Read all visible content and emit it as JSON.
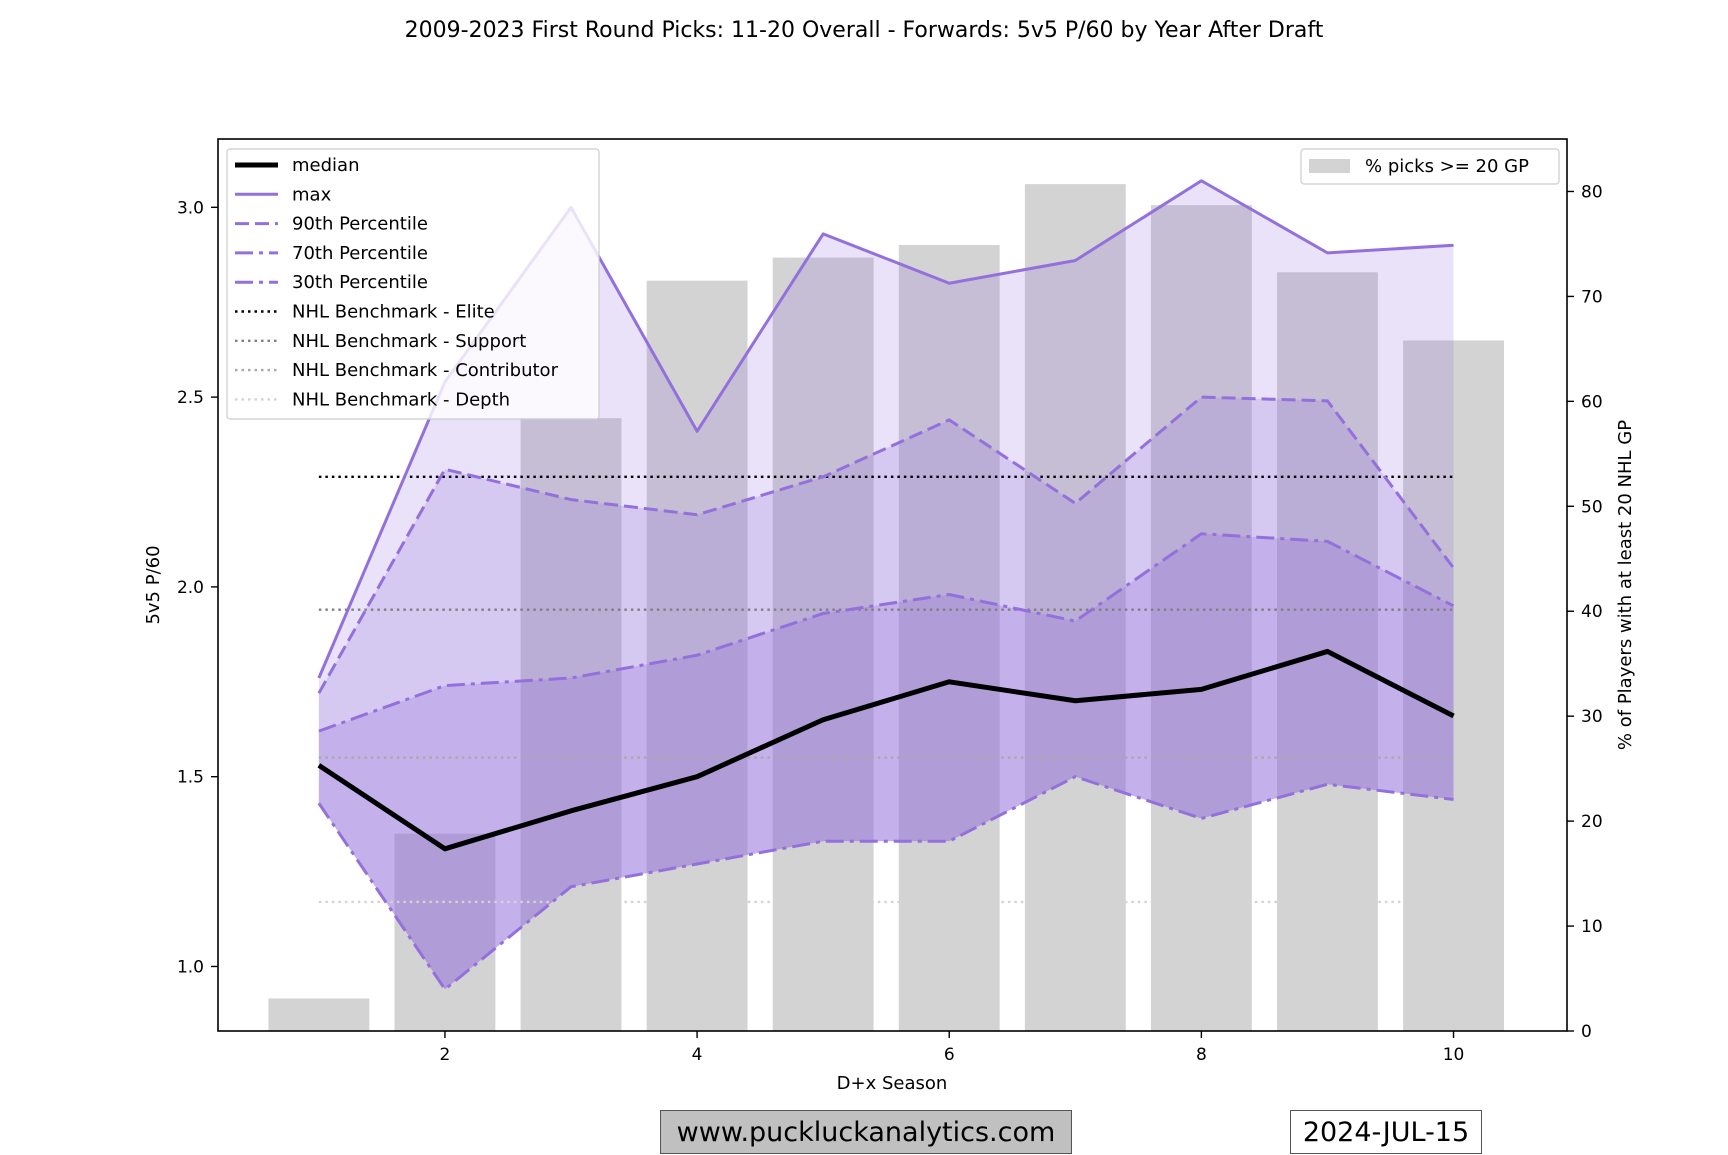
{
  "title": "2009-2023 First Round Picks: 11-20 Overall - Forwards: 5v5 P/60 by Year After Draft",
  "footer": {
    "website": "www.puckluckanalytics.com",
    "date": "2024-JUL-15"
  },
  "colors": {
    "median": "#000000",
    "purple": "#9370db",
    "bar": "#d3d3d3",
    "elite": "#000000",
    "support": "#808080",
    "contributor": "#a9a9a9",
    "depth": "#d3d3d3"
  },
  "chart_data": {
    "type": "line",
    "xlabel": "D+x Season",
    "ylabel": "5v5 P/60",
    "y2label": "% of Players with at least 20 NHL GP",
    "xlim": [
      0.2,
      10.9
    ],
    "ylim": [
      0.83,
      3.18
    ],
    "y2lim": [
      0,
      85
    ],
    "xticks": [
      2,
      4,
      6,
      8,
      10
    ],
    "yticks": [
      1.0,
      1.5,
      2.0,
      2.5,
      3.0
    ],
    "y2ticks": [
      0,
      10,
      20,
      30,
      40,
      50,
      60,
      70,
      80
    ],
    "x": [
      1,
      2,
      3,
      4,
      5,
      6,
      7,
      8,
      9,
      10
    ],
    "series": [
      {
        "name": "median",
        "style": "solid-thick",
        "values": [
          1.53,
          1.31,
          1.41,
          1.5,
          1.65,
          1.75,
          1.7,
          1.73,
          1.83,
          1.66
        ]
      },
      {
        "name": "max",
        "style": "solid",
        "values": [
          1.76,
          2.54,
          3.0,
          2.41,
          2.93,
          2.8,
          2.86,
          3.07,
          2.88,
          2.9
        ]
      },
      {
        "name": "90th Percentile",
        "style": "dashed",
        "values": [
          1.72,
          2.31,
          2.23,
          2.19,
          2.29,
          2.44,
          2.22,
          2.5,
          2.49,
          2.05
        ]
      },
      {
        "name": "70th Percentile",
        "style": "dashdot",
        "values": [
          1.62,
          1.74,
          1.76,
          1.82,
          1.93,
          1.98,
          1.91,
          2.14,
          2.12,
          1.95
        ]
      },
      {
        "name": "30th Percentile",
        "style": "dashdot",
        "values": [
          1.43,
          0.94,
          1.21,
          1.27,
          1.33,
          1.33,
          1.5,
          1.39,
          1.48,
          1.44
        ]
      }
    ],
    "benchmarks": [
      {
        "name": "NHL Benchmark - Elite",
        "value": 2.29
      },
      {
        "name": "NHL Benchmark - Support",
        "value": 1.94
      },
      {
        "name": "NHL Benchmark - Contributor",
        "value": 1.55
      },
      {
        "name": "NHL Benchmark - Depth",
        "value": 1.17
      }
    ],
    "bars": {
      "name": "% picks >= 20 GP",
      "values": [
        3.1,
        18.8,
        58.4,
        71.5,
        73.7,
        74.9,
        80.7,
        78.7,
        72.3,
        65.8
      ]
    },
    "legend_left": "upper-left",
    "legend_right": "upper-right",
    "grid": false
  }
}
